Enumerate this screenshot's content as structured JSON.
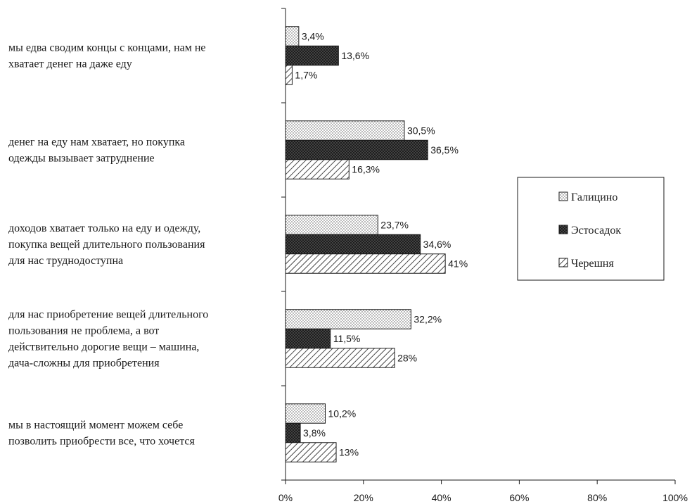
{
  "chart_data": {
    "type": "bar",
    "orientation": "horizontal",
    "title": "",
    "xlabel": "",
    "ylabel": "",
    "xlim": [
      0,
      100
    ],
    "x_ticks": [
      0,
      20,
      40,
      60,
      80,
      100
    ],
    "tick_suffix": "%",
    "grid": false,
    "legend_position": "right",
    "categories": [
      {
        "lines": [
          "мы едва сводим концы с концами, нам не",
          "хватает денег на даже еду"
        ]
      },
      {
        "lines": [
          "денег на еду нам хватает, но покупка",
          "одежды вызывает затруднение"
        ]
      },
      {
        "lines": [
          "доходов хватает только на еду и одежду,",
          "покупка вещей длительного пользования",
          "для нас труднодоступна"
        ]
      },
      {
        "lines": [
          "для нас приобретение вещей длительного",
          "пользования не проблема, а вот",
          "действительно дорогие вещи – машина,",
          "дача-сложны для приобретения"
        ]
      },
      {
        "lines": [
          "мы в настоящий момент можем себе",
          "позволить приобрести все, что хочется"
        ]
      }
    ],
    "series": [
      {
        "name": "Галицино",
        "pattern": "dots",
        "values": [
          3.4,
          30.5,
          23.7,
          32.2,
          10.2
        ],
        "labels": [
          "3,4%",
          "30,5%",
          "23,7%",
          "32,2%",
          "10,2%"
        ]
      },
      {
        "name": "Эстосадок",
        "pattern": "dark",
        "values": [
          13.6,
          36.5,
          34.6,
          11.5,
          3.8
        ],
        "labels": [
          "13,6%",
          "36,5%",
          "34,6%",
          "11,5%",
          "3,8%"
        ]
      },
      {
        "name": "Черешня",
        "pattern": "hatch",
        "values": [
          1.7,
          16.3,
          41,
          28,
          13
        ],
        "labels": [
          "1,7%",
          "16,3%",
          "41%",
          "28%",
          "13%"
        ]
      }
    ]
  }
}
